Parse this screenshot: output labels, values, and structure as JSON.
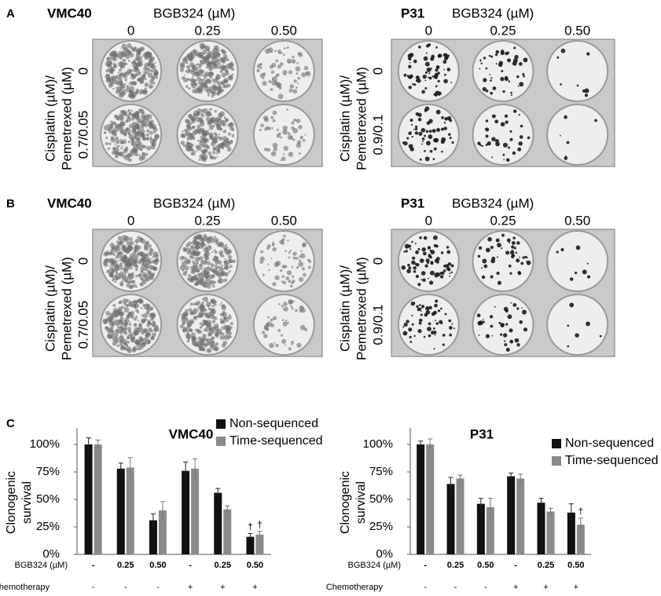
{
  "panels": [
    {
      "letter": "A",
      "plates": [
        {
          "cell_line": "VMC40",
          "drug": "BGB324 (µM)",
          "columns": [
            "0",
            "0.25",
            "0.50"
          ],
          "row_label": [
            "Cisplatin (µM)/",
            "Pemetrexed (µM)"
          ],
          "rows": [
            "0",
            "0.7/0.05"
          ]
        },
        {
          "cell_line": "P31",
          "drug": "BGB324 (µM)",
          "columns": [
            "0",
            "0.25",
            "0.50"
          ],
          "row_label": [
            "Cisplatin (µM)/",
            "Pemetrexed (µM)"
          ],
          "rows": [
            "0",
            "0.9/0.1"
          ]
        }
      ]
    },
    {
      "letter": "B",
      "plates": [
        {
          "cell_line": "VMC40",
          "drug": "BGB324 (µM)",
          "columns": [
            "0",
            "0.25",
            "0.50"
          ],
          "row_label": [
            "Cisplatin (µM)/",
            "Pemetrexed (µM)"
          ],
          "rows": [
            "0",
            "0.7/0.05"
          ]
        },
        {
          "cell_line": "P31",
          "drug": "BGB324 (µM)",
          "columns": [
            "0",
            "0.25",
            "0.50"
          ],
          "row_label": [
            "Cisplatin (µM)/",
            "Pemetrexed (µM)"
          ],
          "rows": [
            "0",
            "0.9/0.1"
          ]
        }
      ]
    }
  ],
  "panel_c_letter": "C",
  "chart_data": [
    {
      "type": "bar",
      "title": "VMC40",
      "ylabel": [
        "Clonogenic",
        "survival"
      ],
      "x_row_label": "BGB324 (µM)",
      "categories": [
        "-",
        "0.25",
        "0.50",
        "-",
        "0.25",
        "0.50"
      ],
      "chemotherapy": {
        "label": "Chemotherapy",
        "values": [
          "-",
          "-",
          "-",
          "+",
          "+",
          "+"
        ]
      },
      "ylim": [
        0,
        115
      ],
      "yticks": [
        {
          "value": 0,
          "label": "0%"
        },
        {
          "value": 25,
          "label": "25%"
        },
        {
          "value": 50,
          "label": "50%"
        },
        {
          "value": 75,
          "label": "75%"
        },
        {
          "value": 100,
          "label": "100%"
        }
      ],
      "series": [
        {
          "name": "Non-sequenced",
          "color": "#111111",
          "values": [
            100,
            78,
            31,
            76,
            56,
            16
          ],
          "errors": [
            6,
            5,
            6,
            8,
            4,
            3
          ],
          "marks": [
            null,
            null,
            null,
            null,
            null,
            "†"
          ]
        },
        {
          "name": "Time-sequenced",
          "color": "#8a8a8a",
          "values": [
            100,
            79,
            40,
            78,
            41,
            18
          ],
          "errors": [
            4,
            9,
            8,
            9,
            3,
            3
          ],
          "marks": [
            null,
            null,
            null,
            null,
            null,
            "†"
          ]
        }
      ]
    },
    {
      "type": "bar",
      "title": "P31",
      "ylabel": [
        "Clonogenic",
        "survival"
      ],
      "x_row_label": "BGB324 (µM)",
      "categories": [
        "-",
        "0.25",
        "0.50",
        "-",
        "0.25",
        "0.50"
      ],
      "chemotherapy": {
        "label": "Chemotherapy",
        "values": [
          "-",
          "-",
          "-",
          "+",
          "+",
          "+"
        ]
      },
      "ylim": [
        0,
        115
      ],
      "yticks": [
        {
          "value": 0,
          "label": "0%"
        },
        {
          "value": 25,
          "label": "25%"
        },
        {
          "value": 50,
          "label": "50%"
        },
        {
          "value": 75,
          "label": "75%"
        },
        {
          "value": 100,
          "label": "100%"
        }
      ],
      "series": [
        {
          "name": "Non-sequenced",
          "color": "#111111",
          "values": [
            100,
            64,
            46,
            71,
            47,
            38
          ],
          "errors": [
            3,
            6,
            5,
            3,
            4,
            8
          ],
          "marks": [
            null,
            null,
            null,
            null,
            null,
            null
          ]
        },
        {
          "name": "Time-sequenced",
          "color": "#8a8a8a",
          "values": [
            100,
            69,
            43,
            69,
            39,
            27
          ],
          "errors": [
            5,
            3,
            8,
            4,
            3,
            6
          ],
          "marks": [
            null,
            null,
            null,
            null,
            null,
            "†"
          ]
        }
      ]
    }
  ]
}
